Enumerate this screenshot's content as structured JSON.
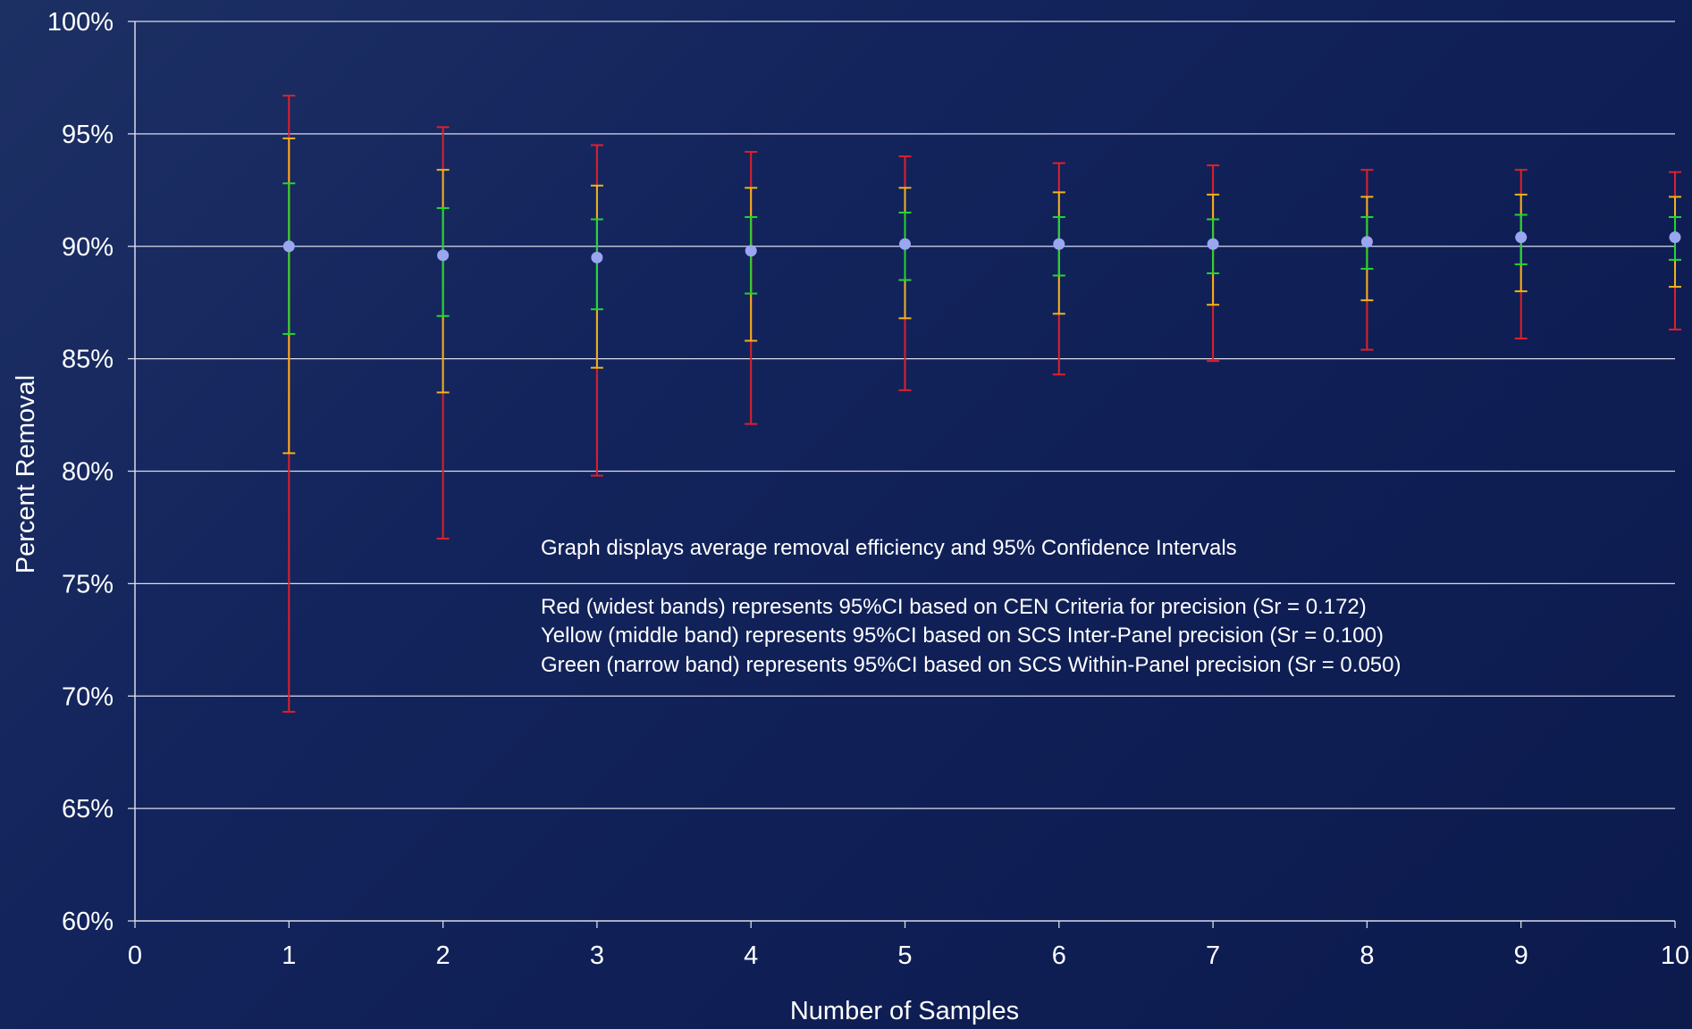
{
  "chart_data": {
    "type": "scatter",
    "title": "",
    "xlabel": "Number of Samples",
    "ylabel": "Percent Removal",
    "xlim": [
      0,
      10
    ],
    "ylim": [
      60,
      100
    ],
    "x_ticks": [
      "0",
      "1",
      "2",
      "3",
      "4",
      "5",
      "6",
      "7",
      "8",
      "9",
      "10"
    ],
    "y_ticks": [
      "60%",
      "65%",
      "70%",
      "75%",
      "80%",
      "85%",
      "90%",
      "95%",
      "100%"
    ],
    "grid": true,
    "x": [
      1,
      2,
      3,
      4,
      5,
      6,
      7,
      8,
      9,
      10
    ],
    "mean": [
      90.0,
      89.6,
      89.5,
      89.8,
      90.1,
      90.1,
      90.1,
      90.2,
      90.4,
      90.4
    ],
    "intervals": [
      {
        "name": "Red (widest bands)",
        "color": "#e0202a",
        "upper": [
          96.7,
          95.3,
          94.5,
          94.2,
          94.0,
          93.7,
          93.6,
          93.4,
          93.4,
          93.3
        ],
        "lower": [
          69.3,
          77.0,
          79.8,
          82.1,
          83.6,
          84.3,
          84.9,
          85.4,
          85.9,
          86.3
        ]
      },
      {
        "name": "Yellow (middle band)",
        "color": "#f2b21c",
        "upper": [
          94.8,
          93.4,
          92.7,
          92.6,
          92.6,
          92.4,
          92.3,
          92.2,
          92.3,
          92.2
        ],
        "lower": [
          80.8,
          83.5,
          84.6,
          85.8,
          86.8,
          87.0,
          87.4,
          87.6,
          88.0,
          88.2
        ]
      },
      {
        "name": "Green (narrow band)",
        "color": "#22d633",
        "upper": [
          92.8,
          91.7,
          91.2,
          91.3,
          91.5,
          91.3,
          91.2,
          91.3,
          91.4,
          91.3
        ],
        "lower": [
          86.1,
          86.9,
          87.2,
          87.9,
          88.5,
          88.7,
          88.8,
          89.0,
          89.2,
          89.4
        ]
      }
    ],
    "mean_color": "#9aa6f0",
    "annotations": [
      "Graph displays average removal efficiency and 95% Confidence Intervals",
      "Red (widest bands) represents 95%CI based on CEN Criteria for precision (Sr = 0.172)",
      "Yellow (middle band) represents 95%CI based on SCS Inter-Panel precision (Sr = 0.100)",
      "Green (narrow band) represents 95%CI based on SCS Within-Panel precision (Sr = 0.050)"
    ]
  }
}
